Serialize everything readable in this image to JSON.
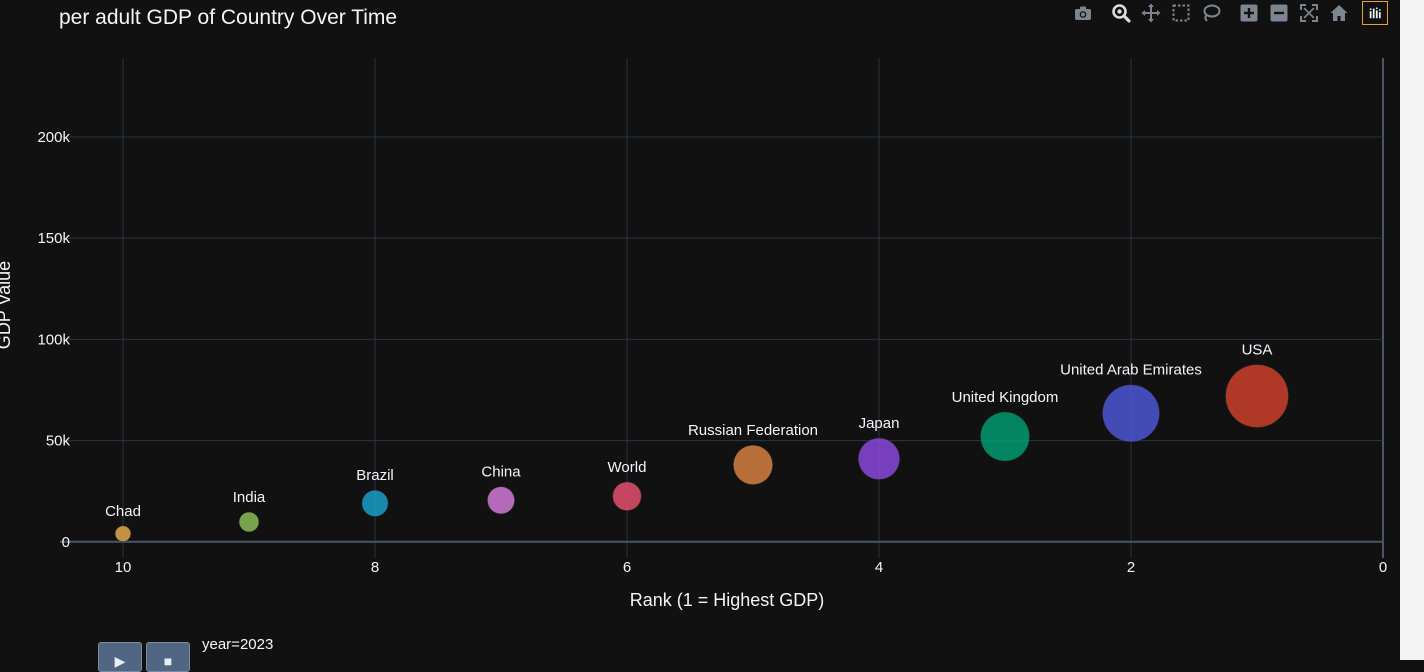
{
  "title": "per adult GDP of Country Over Time",
  "modebar": {
    "tools": [
      {
        "icon": "camera-icon",
        "name": "download-plot"
      },
      {
        "icon": "zoom-icon",
        "name": "zoom"
      },
      {
        "icon": "pan-icon",
        "name": "pan"
      },
      {
        "icon": "box-select-icon",
        "name": "box-select"
      },
      {
        "icon": "lasso-icon",
        "name": "lasso-select"
      },
      {
        "icon": "zoom-in-icon",
        "name": "zoom-in"
      },
      {
        "icon": "zoom-out-icon",
        "name": "zoom-out"
      },
      {
        "icon": "autoscale-icon",
        "name": "autoscale"
      },
      {
        "icon": "home-icon",
        "name": "reset-axes"
      }
    ],
    "logo_icon": "plotly-logo-icon",
    "logo_color": "#e8a32f"
  },
  "animation": {
    "play_icon": "play-icon",
    "pause_icon": "pause-icon",
    "play_label": "▶",
    "pause_label": "■",
    "slider_label": "year=2023"
  },
  "chart_data": {
    "type": "scatter",
    "title": "per adult GDP of Country Over Time",
    "xlabel": "Rank (1 = Highest GDP)",
    "ylabel": "GDP Value",
    "xlim": [
      10.5,
      0
    ],
    "ylim": [
      -8000,
      239000
    ],
    "xticks": [
      10,
      8,
      6,
      4,
      2,
      0
    ],
    "yticks": [
      0,
      50000,
      100000,
      150000,
      200000
    ],
    "ytick_labels": [
      "0",
      "50k",
      "100k",
      "150k",
      "200k"
    ],
    "grid": true,
    "points": [
      {
        "label": "Chad",
        "x": 10,
        "y": 4000,
        "color": "#e0a94a"
      },
      {
        "label": "India",
        "x": 9,
        "y": 9800,
        "color": "#8cbc5a"
      },
      {
        "label": "Brazil",
        "x": 8,
        "y": 19000,
        "color": "#19a0c8"
      },
      {
        "label": "China",
        "x": 7,
        "y": 20500,
        "color": "#d07ad6"
      },
      {
        "label": "World",
        "x": 6,
        "y": 22500,
        "color": "#e0506c"
      },
      {
        "label": "Russian Federation",
        "x": 5,
        "y": 38000,
        "color": "#d68040"
      },
      {
        "label": "Japan",
        "x": 4,
        "y": 41000,
        "color": "#8a48dc"
      },
      {
        "label": "United Kingdom",
        "x": 3,
        "y": 52000,
        "color": "#009a6e"
      },
      {
        "label": "United Arab Emirates",
        "x": 2,
        "y": 63500,
        "color": "#4c56d4"
      },
      {
        "label": "USA",
        "x": 1,
        "y": 72000,
        "color": "#cc3f2a"
      }
    ]
  }
}
